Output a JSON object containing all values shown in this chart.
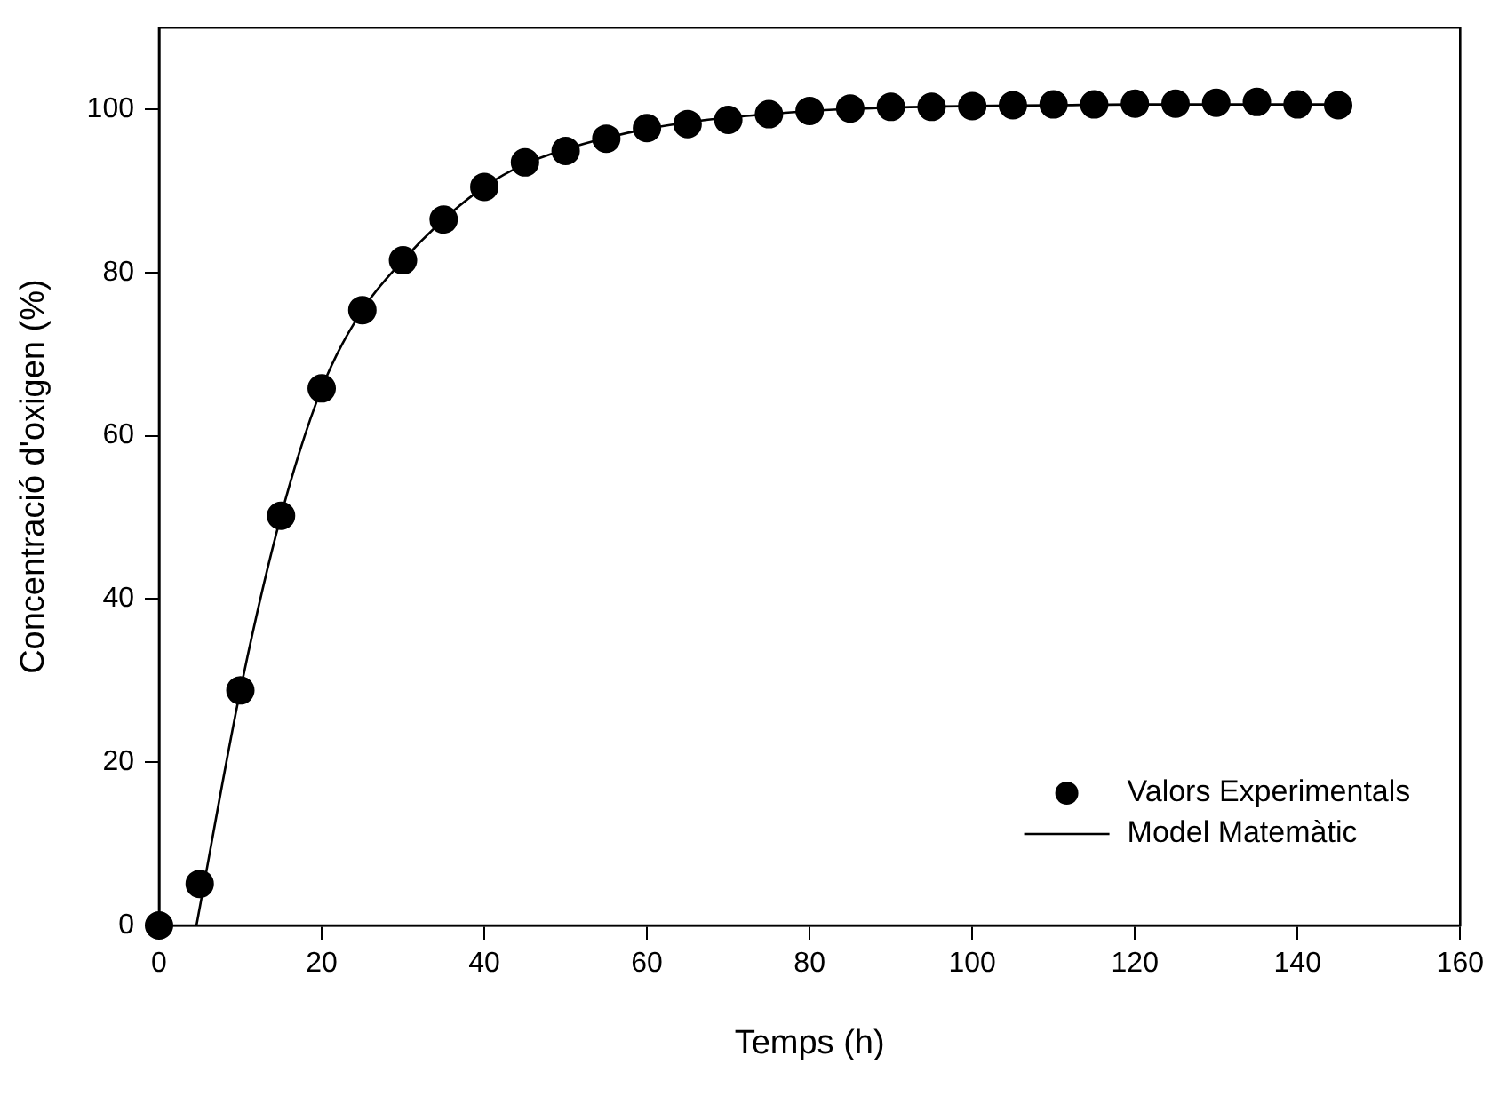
{
  "chart_data": {
    "type": "scatter",
    "xlabel": "Temps (h)",
    "ylabel": "Concentració d'oxigen (%)",
    "xlim": [
      0,
      160
    ],
    "xticks": [
      0,
      20,
      40,
      60,
      80,
      100,
      120,
      140,
      160
    ],
    "ylim": [
      0,
      110
    ],
    "yticks": [
      0,
      20,
      40,
      60,
      80,
      100
    ],
    "grid": false,
    "legend": "bottom right",
    "series": [
      {
        "name": "Valors Experimentals",
        "type": "scatter",
        "color": "#000000",
        "marker": "circle",
        "x": [
          0,
          5,
          10,
          15,
          20,
          25,
          30,
          35,
          40,
          45,
          50,
          55,
          60,
          65,
          70,
          75,
          80,
          85,
          90,
          95,
          100,
          105,
          110,
          115,
          120,
          125,
          130,
          135,
          140,
          145
        ],
        "values": [
          0,
          5.1,
          28.8,
          50.2,
          65.8,
          75.4,
          81.5,
          86.5,
          90.5,
          93.5,
          94.9,
          96.4,
          97.7,
          98.2,
          98.7,
          99.4,
          99.8,
          100.1,
          100.3,
          100.3,
          100.4,
          100.5,
          100.6,
          100.6,
          100.7,
          100.7,
          100.8,
          100.9,
          100.6,
          100.5
        ]
      },
      {
        "name": "Model Matemàtic",
        "type": "line",
        "color": "#000000",
        "marker": "none",
        "line_style": "solid",
        "x": [
          4.6,
          10,
          15,
          20,
          25,
          30,
          35,
          40,
          45,
          50,
          55,
          60,
          65,
          70,
          75,
          80,
          90,
          100,
          110,
          120,
          130,
          145
        ],
        "values": [
          0,
          28.8,
          50.2,
          65.8,
          75.4,
          81.5,
          86.5,
          90.5,
          93.3,
          95.1,
          96.5,
          97.6,
          98.4,
          99.0,
          99.4,
          99.8,
          100.2,
          100.4,
          100.5,
          100.6,
          100.6,
          100.6
        ]
      }
    ]
  }
}
